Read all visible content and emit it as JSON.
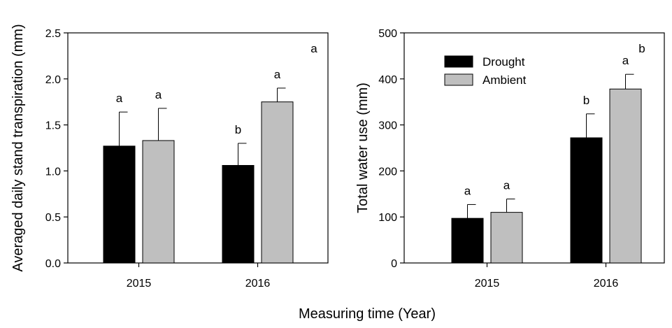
{
  "figure": {
    "shared_xlabel": "Measuring time (Year)"
  },
  "chart_data": [
    {
      "type": "bar",
      "panel_label": "a",
      "categories": [
        "2015",
        "2016"
      ],
      "series": [
        {
          "name": "Drought",
          "color": "#000000",
          "values": [
            1.27,
            1.06
          ],
          "errors": [
            0.37,
            0.24
          ],
          "sig": [
            "a",
            "b"
          ]
        },
        {
          "name": "Ambient",
          "color": "#bfbfbf",
          "values": [
            1.33,
            1.75
          ],
          "errors": [
            0.35,
            0.15
          ],
          "sig": [
            "a",
            "a"
          ]
        }
      ],
      "ylabel": "Averaged daily stand transpiration (mm)",
      "ylim": [
        0,
        2.5
      ],
      "yticks": [
        "0.0",
        "0.5",
        "1.0",
        "1.5",
        "2.0",
        "2.5"
      ],
      "legend": false
    },
    {
      "type": "bar",
      "panel_label": "b",
      "categories": [
        "2015",
        "2016"
      ],
      "series": [
        {
          "name": "Drought",
          "color": "#000000",
          "values": [
            97,
            272
          ],
          "errors": [
            30,
            52
          ],
          "sig": [
            "a",
            "b"
          ]
        },
        {
          "name": "Ambient",
          "color": "#bfbfbf",
          "values": [
            110,
            378
          ],
          "errors": [
            29,
            32
          ],
          "sig": [
            "a",
            "a"
          ]
        }
      ],
      "ylabel": "Total water use (mm)",
      "ylim": [
        0,
        500
      ],
      "yticks": [
        "0",
        "100",
        "200",
        "300",
        "400",
        "500"
      ],
      "legend": true,
      "legend_position": "top-left"
    }
  ]
}
